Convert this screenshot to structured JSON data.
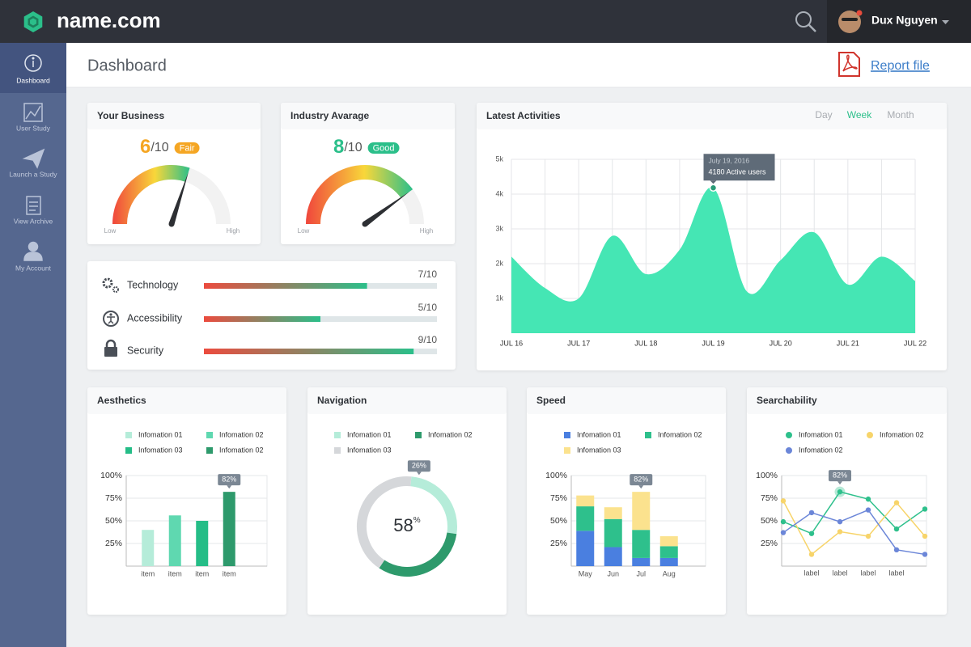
{
  "header": {
    "logo": "name.com",
    "user": "Dux Nguyen"
  },
  "sidebar": [
    {
      "label": "Dashboard",
      "active": true
    },
    {
      "label": "User Study"
    },
    {
      "label": "Launch a Study"
    },
    {
      "label": "View Archive"
    },
    {
      "label": "My Account"
    }
  ],
  "page": {
    "title": "Dashboard",
    "report_link": "Report file"
  },
  "gauges": [
    {
      "title": "Your Business",
      "score": 6,
      "max": 10,
      "max_label": "/10",
      "rating": "Fair",
      "color": "#f5a623",
      "low_label": "Low",
      "high_label": "High"
    },
    {
      "title": "Industry Avarage",
      "score": 8,
      "max": 10,
      "max_label": "/10",
      "rating": "Good",
      "color": "#2bbf8a",
      "low_label": "Low",
      "high_label": "High"
    }
  ],
  "scores": [
    {
      "label": "Technology",
      "value": 7,
      "max": 10,
      "value_label": "7/10"
    },
    {
      "label": "Accessibility",
      "value": 5,
      "max": 10,
      "value_label": "5/10"
    },
    {
      "label": "Security",
      "value": 9,
      "max": 10,
      "value_label": "9/10"
    }
  ],
  "chart_data": [
    {
      "type": "area",
      "title": "Latest Activities",
      "tabs": [
        "Day",
        "Week",
        "Month"
      ],
      "active_tab": "Week",
      "categories": [
        "JUL 16",
        null,
        "JUL 17",
        null,
        "JUL 18",
        null,
        "JUL 19",
        null,
        "JUL 20",
        null,
        "JUL 21",
        null,
        "JUL 22"
      ],
      "values": [
        2200,
        1300,
        1000,
        2800,
        1700,
        2400,
        4180,
        1200,
        2100,
        2900,
        1400,
        2200,
        1500
      ],
      "value_labels": [
        null,
        null,
        null,
        null,
        null,
        null,
        "4180 Active users",
        null,
        null,
        null,
        null,
        null,
        null
      ],
      "tooltip_date": "July 19, 2016",
      "color": "#45e6b4",
      "ylim": [
        0,
        5000
      ],
      "yticks": [
        {
          "value": 1000,
          "label": "1k"
        },
        {
          "value": 2000,
          "label": "2k"
        },
        {
          "value": 3000,
          "label": "3k"
        },
        {
          "value": 4000,
          "label": "4k"
        },
        {
          "value": 5000,
          "label": "5k"
        }
      ],
      "grid": true
    },
    {
      "type": "bar",
      "title": "Aesthetics",
      "legend": [
        {
          "name": "Infomation 01",
          "color": "#b5ecd9"
        },
        {
          "name": "Infomation 02",
          "color": "#5fd8b0"
        },
        {
          "name": "Infomation 03",
          "color": "#25bd87"
        },
        {
          "name": "Infomation 02",
          "color": "#2e9a6c"
        }
      ],
      "categories": [
        "item",
        "item",
        "item",
        "item"
      ],
      "values": [
        40,
        56,
        50,
        82
      ],
      "value_labels": [
        null,
        null,
        null,
        "82%"
      ],
      "ylim": [
        0,
        100
      ],
      "yticks": [
        {
          "value": 25,
          "label": "25%"
        },
        {
          "value": 50,
          "label": "50%"
        },
        {
          "value": 75,
          "label": "75%"
        },
        {
          "value": 100,
          "label": "100%"
        }
      ],
      "grid": true
    },
    {
      "type": "donut",
      "title": "Navigation",
      "legend": [
        {
          "name": "Infomation 01",
          "color": "#b5ecd9"
        },
        {
          "name": "Infomation 02",
          "color": "#2e9a6c"
        },
        {
          "name": "Infomation 03",
          "color": "#d5d7da"
        }
      ],
      "values": [
        26,
        32,
        42
      ],
      "value_labels": [
        "26%",
        null,
        null
      ],
      "center_value": 58,
      "center_unit": "%"
    },
    {
      "type": "stacked_bar",
      "title": "Speed",
      "categories": [
        "May",
        "Jun",
        "Jul",
        "Aug"
      ],
      "series": [
        {
          "name": "Infomation 01",
          "color": "#4a7fe0",
          "values": [
            39,
            21,
            9,
            9
          ]
        },
        {
          "name": "Infomation 02",
          "color": "#2ec08c",
          "values": [
            27,
            31,
            31,
            13
          ]
        },
        {
          "name": "Infomation 03",
          "color": "#fbe28e",
          "values": [
            12,
            13,
            42,
            11
          ]
        }
      ],
      "stack_labels": [
        null,
        null,
        "82%",
        null
      ],
      "ylim": [
        0,
        100
      ],
      "yticks": [
        {
          "value": 25,
          "label": "25%"
        },
        {
          "value": 50,
          "label": "50%"
        },
        {
          "value": 75,
          "label": "75%"
        },
        {
          "value": 100,
          "label": "100%"
        }
      ],
      "grid": true
    },
    {
      "type": "line",
      "title": "Searchability",
      "categories": [
        null,
        "label",
        "label",
        "label",
        "label",
        null
      ],
      "series": [
        {
          "name": "Infomation 01",
          "color": "#2ec08c",
          "values": [
            49,
            36,
            82,
            74,
            41,
            63
          ],
          "value_labels": [
            null,
            null,
            "82%",
            null,
            null,
            null
          ]
        },
        {
          "name": "Infomation 02",
          "color": "#f7d46a",
          "values": [
            72,
            13,
            38,
            33,
            70,
            33
          ]
        },
        {
          "name": "Infomation 02",
          "color": "#6b86d8",
          "values": [
            37,
            59,
            49,
            62,
            18,
            13
          ]
        }
      ],
      "ylim": [
        0,
        100
      ],
      "yticks": [
        {
          "value": 25,
          "label": "25%"
        },
        {
          "value": 50,
          "label": "50%"
        },
        {
          "value": 75,
          "label": "75%"
        },
        {
          "value": 100,
          "label": "100%"
        }
      ],
      "grid": true
    }
  ]
}
